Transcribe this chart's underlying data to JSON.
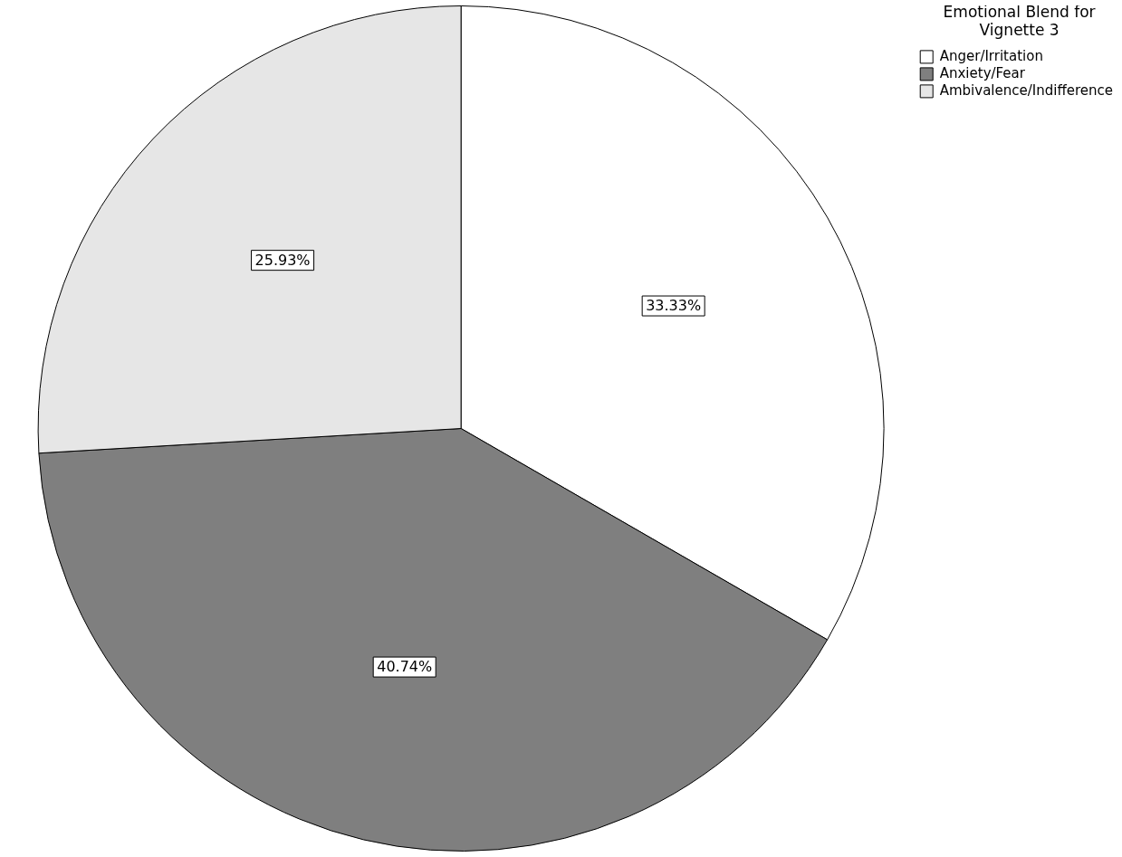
{
  "chart_data": {
    "type": "pie",
    "legend_title": "Emotional Blend for Vignette 3",
    "categories": [
      "Anger/Irritation",
      "Anxiety/Fear",
      "Ambivalence/Indifference"
    ],
    "values": [
      33.33,
      40.74,
      25.93
    ],
    "value_labels": [
      "33.33%",
      "40.74%",
      "25.93%"
    ],
    "colors": [
      "#ffffff",
      "#7f7f7f",
      "#e6e6e6"
    ],
    "legend": "top right"
  }
}
